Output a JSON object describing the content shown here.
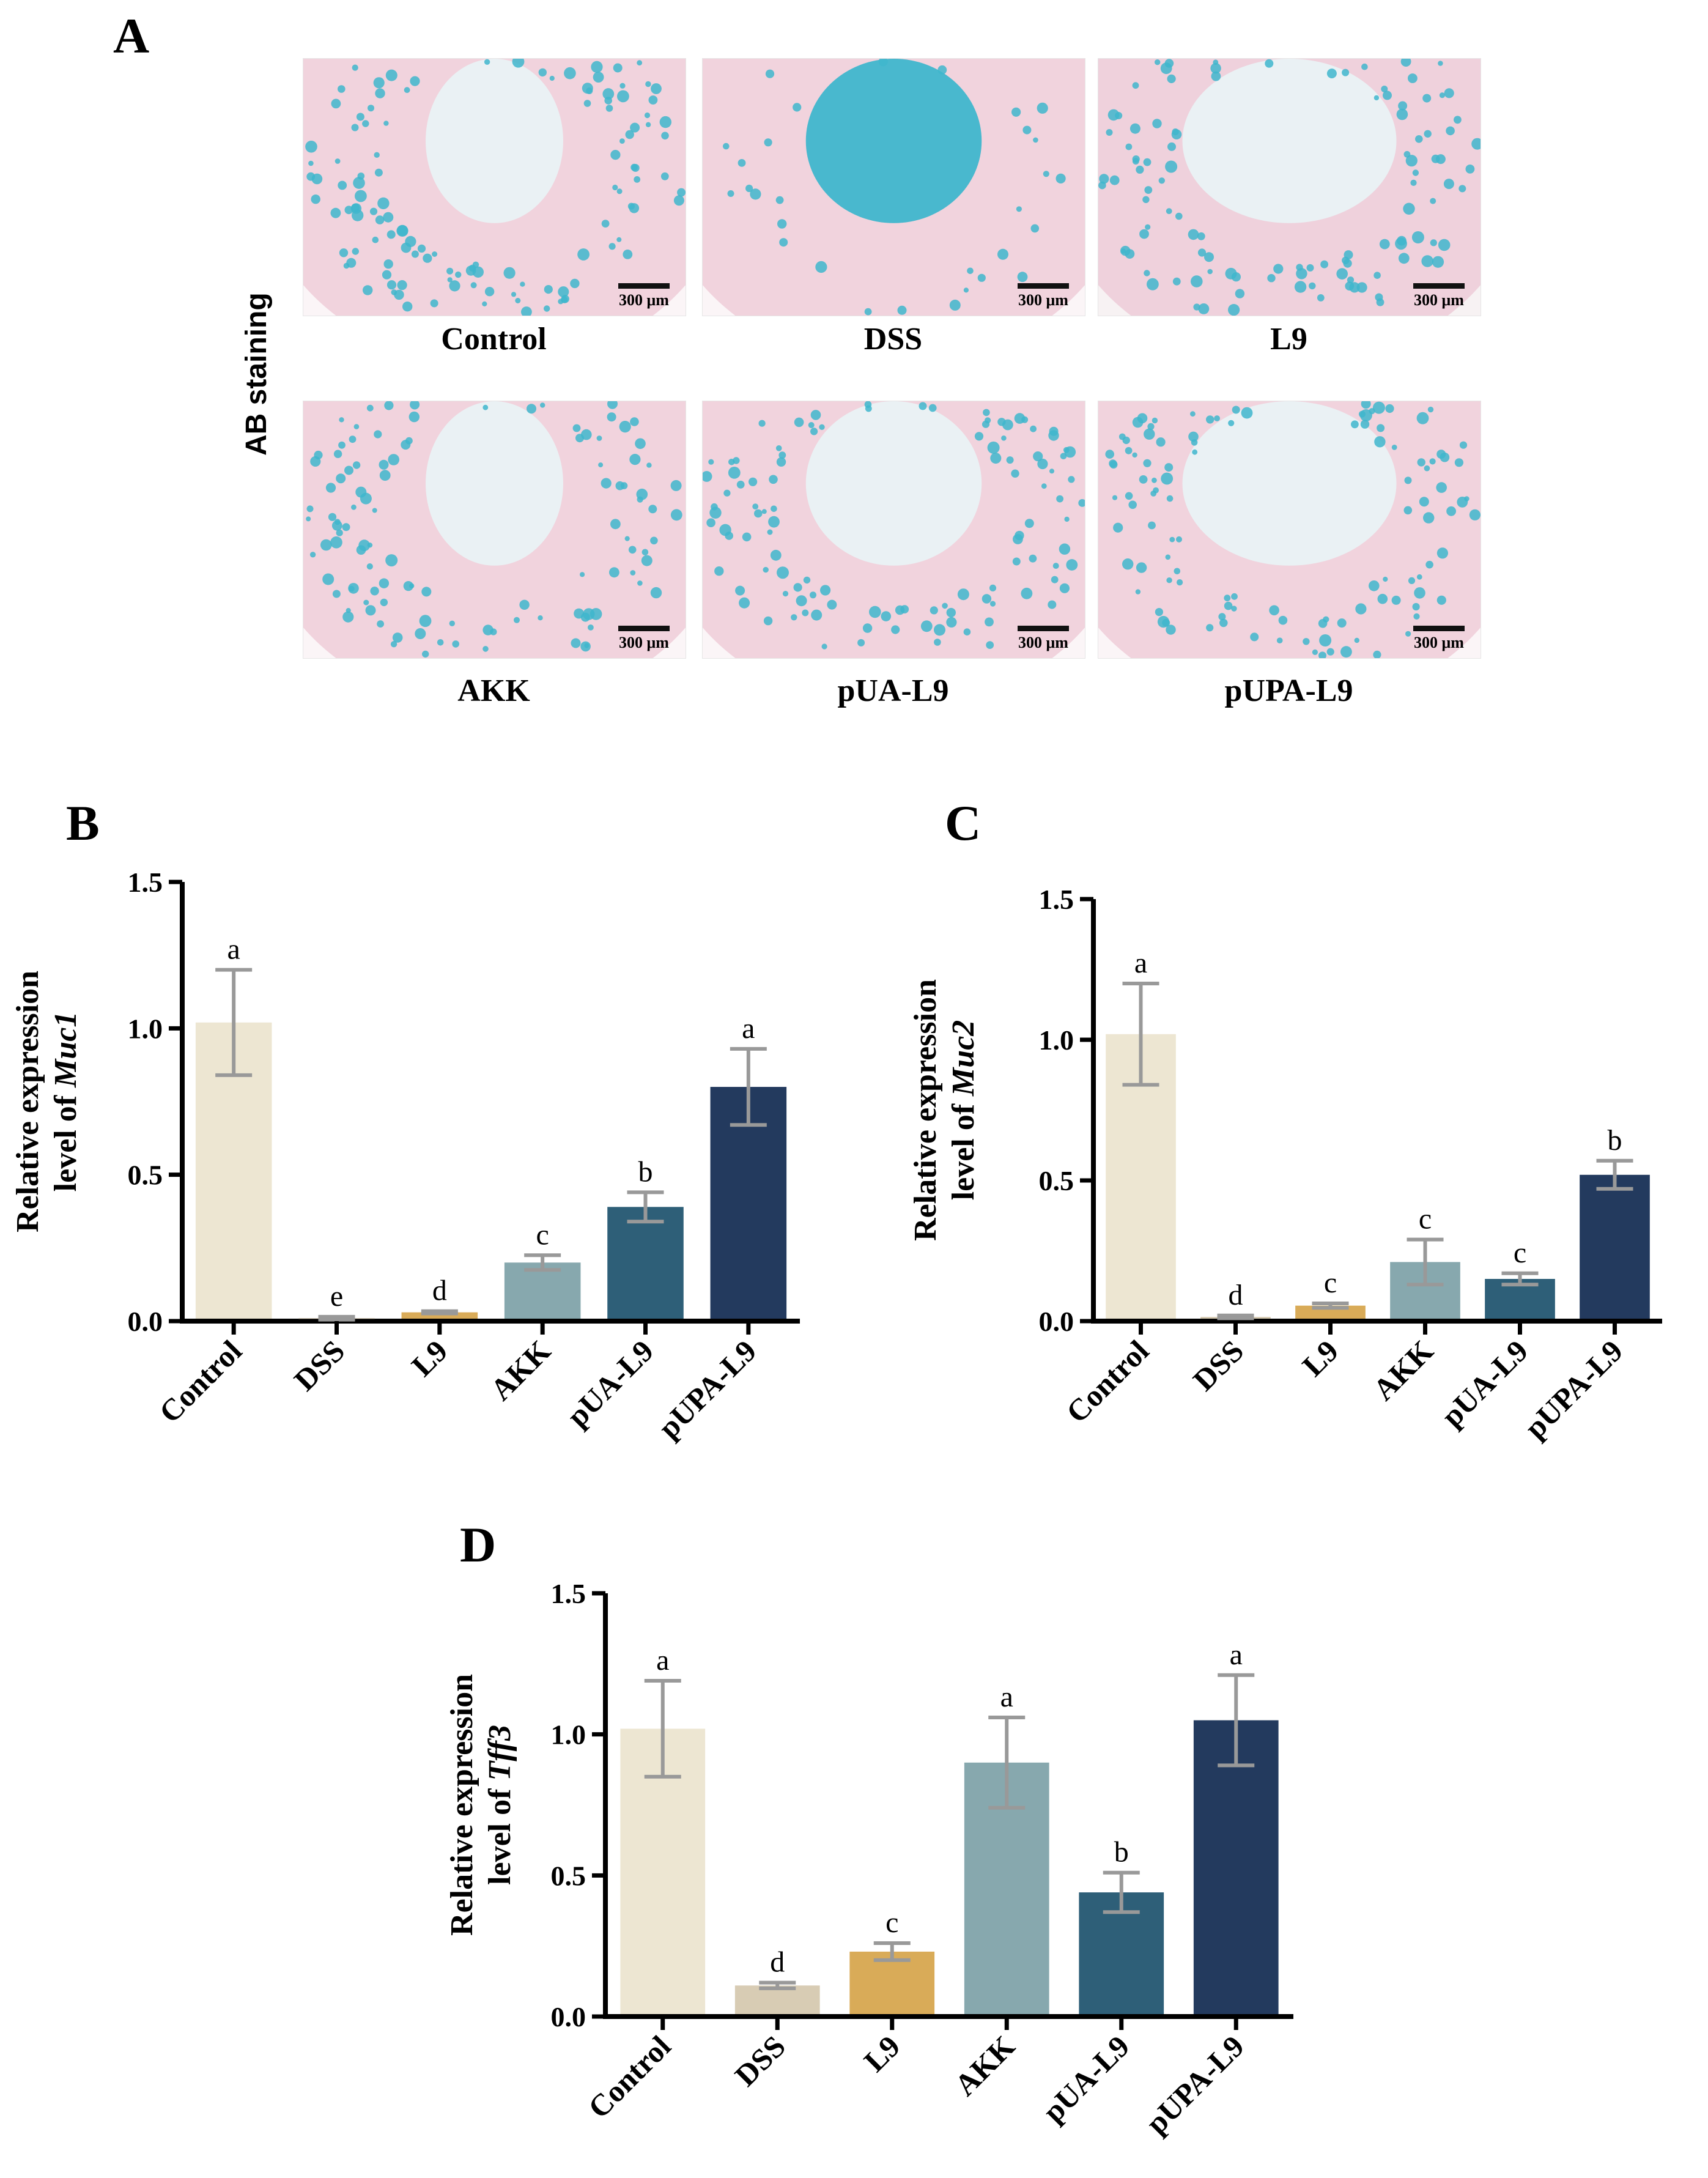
{
  "panels": {
    "a": "A",
    "b": "B",
    "c": "C",
    "d": "D"
  },
  "histology": {
    "row_label": "AB staining",
    "scale_text": "300 μm",
    "images": [
      {
        "label": "Control"
      },
      {
        "label": "DSS"
      },
      {
        "label": "L9"
      },
      {
        "label": "AKK"
      },
      {
        "label": "pUA-L9"
      },
      {
        "label": "pUPA-L9"
      }
    ]
  },
  "colors": {
    "Control": "#ede6d2",
    "DSS": "#d8ccb4",
    "L9": "#d9ab58",
    "AKK": "#87a8ae",
    "pUA-L9": "#2e5f78",
    "pUPA-L9": "#233a5e",
    "error": "#999999",
    "tissue_pink": "#eab7c8",
    "stain_blue": "#3fb6cc"
  },
  "chart_data": [
    {
      "id": "B",
      "type": "bar",
      "ylabel_line1": "Relative expression",
      "ylabel_line2_prefix": "level of ",
      "ylabel_gene": "Muc1",
      "categories": [
        "Control",
        "DSS",
        "L9",
        "AKK",
        "pUA-L9",
        "pUPA-L9"
      ],
      "values": [
        1.02,
        0.01,
        0.03,
        0.2,
        0.39,
        0.8
      ],
      "errors": [
        0.18,
        0.005,
        0.004,
        0.025,
        0.05,
        0.13
      ],
      "letters": [
        "a",
        "e",
        "d",
        "c",
        "b",
        "a"
      ],
      "ylim": [
        0,
        1.5
      ],
      "yticks": [
        "0.0",
        "0.5",
        "1.0",
        "1.5"
      ]
    },
    {
      "id": "C",
      "type": "bar",
      "ylabel_line1": "Relative expression",
      "ylabel_line2_prefix": "level of ",
      "ylabel_gene": "Muc2",
      "categories": [
        "Control",
        "DSS",
        "L9",
        "AKK",
        "pUA-L9",
        "pUPA-L9"
      ],
      "values": [
        1.02,
        0.015,
        0.055,
        0.21,
        0.15,
        0.52
      ],
      "errors": [
        0.18,
        0.005,
        0.008,
        0.08,
        0.02,
        0.05
      ],
      "letters": [
        "a",
        "d",
        "c",
        "c",
        "c",
        "b"
      ],
      "ylim": [
        0,
        1.5
      ],
      "yticks": [
        "0.0",
        "0.5",
        "1.0",
        "1.5"
      ]
    },
    {
      "id": "D",
      "type": "bar",
      "ylabel_line1": "Relative expression",
      "ylabel_line2_prefix": "level of ",
      "ylabel_gene": "Tff3",
      "categories": [
        "Control",
        "DSS",
        "L9",
        "AKK",
        "pUA-L9",
        "pUPA-L9"
      ],
      "values": [
        1.02,
        0.11,
        0.23,
        0.9,
        0.44,
        1.05
      ],
      "errors": [
        0.17,
        0.01,
        0.03,
        0.16,
        0.07,
        0.16
      ],
      "letters": [
        "a",
        "d",
        "c",
        "a",
        "b",
        "a"
      ],
      "ylim": [
        0,
        1.5
      ],
      "yticks": [
        "0.0",
        "0.5",
        "1.0",
        "1.5"
      ]
    }
  ]
}
